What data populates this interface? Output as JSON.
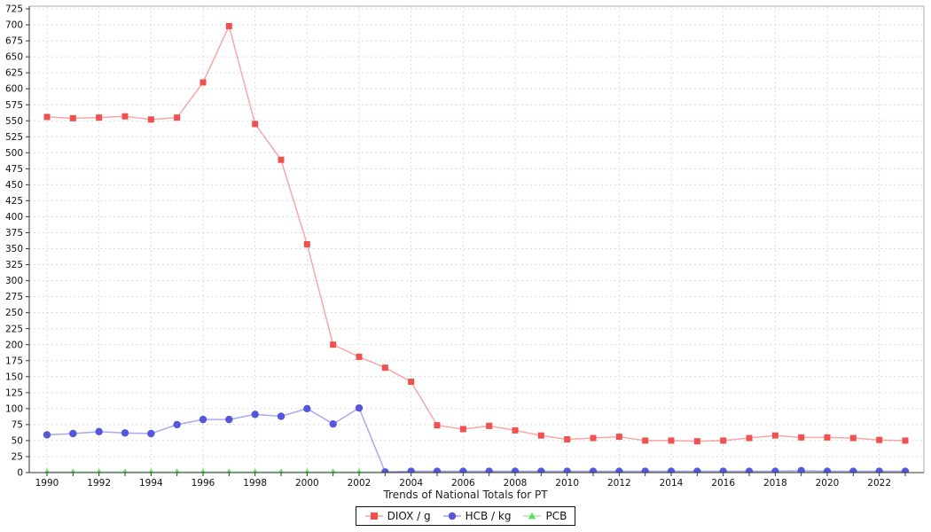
{
  "chart_data": {
    "type": "line",
    "title": "Trends of National Totals for PT",
    "title_position": "below-x-axis",
    "xlabel": "",
    "ylabel": "",
    "x": [
      1990,
      1991,
      1992,
      1993,
      1994,
      1995,
      1996,
      1997,
      1998,
      1999,
      2000,
      2001,
      2002,
      2003,
      2004,
      2005,
      2006,
      2007,
      2008,
      2009,
      2010,
      2011,
      2012,
      2013,
      2014,
      2015,
      2016,
      2017,
      2018,
      2019,
      2020,
      2021,
      2022,
      2023
    ],
    "ylim": [
      0,
      725
    ],
    "ytick_step": 25,
    "xtick_label_step": 2,
    "grid": true,
    "grid_style": "dashed",
    "legend_position": "bottom-center",
    "series": [
      {
        "name": "DIOX / g",
        "marker": "square",
        "color": "#ef5150",
        "values": [
          556,
          554,
          555,
          557,
          552,
          555,
          610,
          698,
          545,
          489,
          357,
          200,
          181,
          164,
          142,
          74,
          68,
          73,
          66,
          58,
          52,
          54,
          56,
          50,
          50,
          49,
          50,
          54,
          58,
          55,
          55,
          54,
          51,
          50
        ]
      },
      {
        "name": "HCB / kg",
        "marker": "circle",
        "color": "#5456dd",
        "values": [
          59,
          61,
          64,
          62,
          61,
          75,
          83,
          83,
          91,
          88,
          100,
          76,
          101,
          1,
          2,
          2,
          2,
          2,
          2,
          2,
          2,
          2,
          2,
          2,
          2,
          2,
          2,
          2,
          2,
          3,
          2,
          2,
          2,
          2
        ]
      },
      {
        "name": "PCB",
        "marker": "triangle",
        "color": "#63dc63",
        "values": [
          1,
          1,
          1,
          1,
          1,
          1,
          1,
          1,
          1,
          1,
          1,
          1,
          1,
          1,
          1,
          1,
          1,
          1,
          1,
          1,
          1,
          1,
          1,
          1,
          1,
          1,
          1,
          1,
          1,
          1,
          1,
          1,
          1,
          1
        ]
      }
    ]
  },
  "colors": {
    "grid": "#dcdcdc",
    "axis": "#333333",
    "border": "#ababab",
    "tick_text": "#111111"
  }
}
